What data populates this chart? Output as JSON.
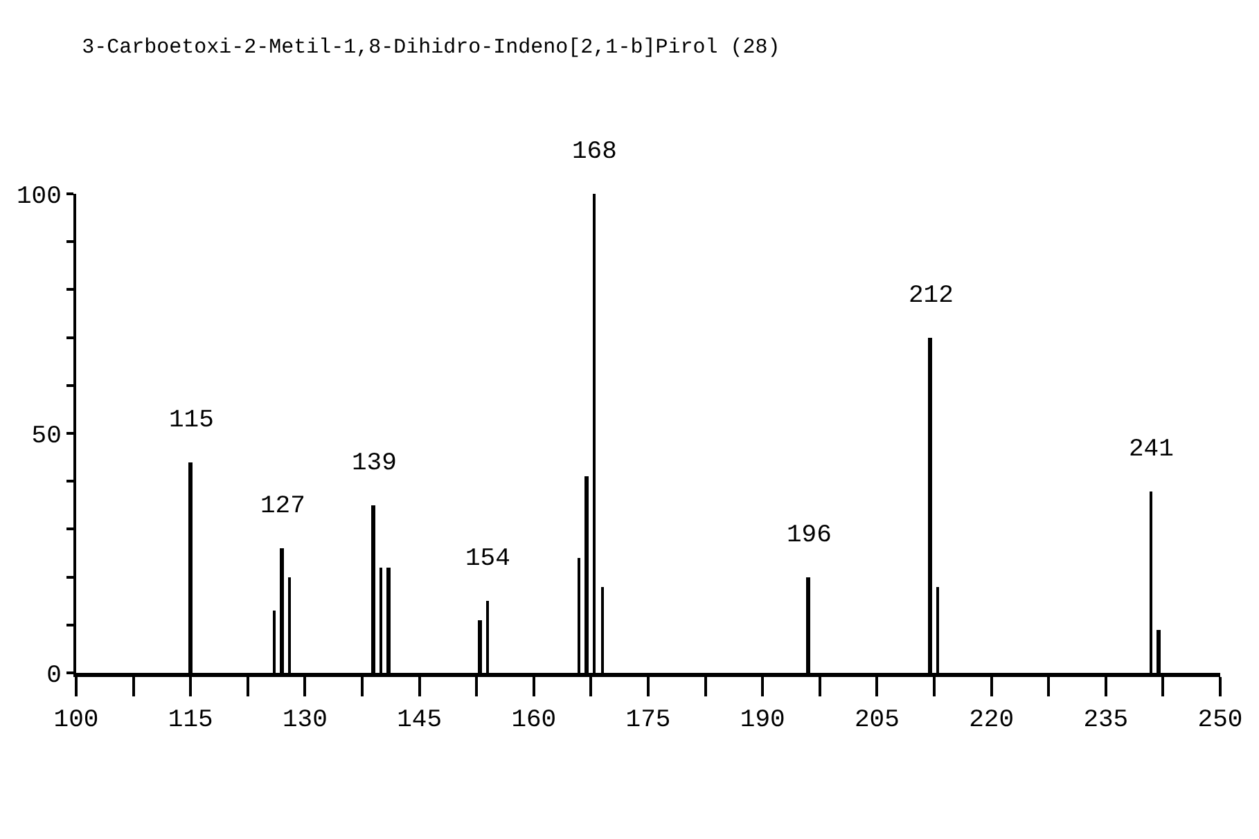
{
  "chart_data": {
    "type": "bar",
    "title": "3-Carboetoxi-2-Metil-1,8-Dihidro-Indeno[2,1-b]Pirol (28)",
    "x": [
      115,
      126,
      127,
      128,
      139,
      140,
      141,
      153,
      154,
      166,
      167,
      168,
      169,
      196,
      212,
      213,
      241,
      242
    ],
    "values": [
      44,
      13,
      26,
      20,
      35,
      22,
      22,
      11,
      15,
      24,
      41,
      100,
      18,
      20,
      70,
      18,
      38,
      9
    ],
    "color": "#000000",
    "xlim": [
      100,
      250
    ],
    "xticks": [
      100,
      {
        "value": 107.5,
        "label": null
      },
      115,
      {
        "value": 122.5,
        "label": null
      },
      130,
      {
        "value": 137.5,
        "label": null
      },
      145,
      {
        "value": 152.5,
        "label": null
      },
      160,
      {
        "value": 167.5,
        "label": null
      },
      175,
      {
        "value": 182.5,
        "label": null
      },
      190,
      {
        "value": 197.5,
        "label": null
      },
      205,
      {
        "value": 212.5,
        "label": null
      },
      220,
      {
        "value": 227.5,
        "label": null
      },
      235,
      {
        "value": 242.5,
        "label": null
      },
      250
    ],
    "ylim": [
      0,
      100
    ],
    "yticks": [
      0,
      {
        "value": 10,
        "label": null
      },
      {
        "value": 20,
        "label": null
      },
      {
        "value": 30,
        "label": null
      },
      {
        "value": 40,
        "label": null
      },
      50,
      {
        "value": 60,
        "label": null
      },
      {
        "value": 70,
        "label": null
      },
      {
        "value": 80,
        "label": null
      },
      {
        "value": 90,
        "label": null
      },
      100
    ],
    "grid": false,
    "annotations": [
      {
        "text": "115",
        "x": 115,
        "y": 44
      },
      {
        "text": "127",
        "x": 127,
        "y": 26
      },
      {
        "text": "139",
        "x": 139,
        "y": 35
      },
      {
        "text": "154",
        "x": 154,
        "y": 15
      },
      {
        "text": "168",
        "x": 168,
        "y": 100
      },
      {
        "text": "196",
        "x": 196,
        "y": 20
      },
      {
        "text": "212",
        "x": 212,
        "y": 70
      },
      {
        "text": "241",
        "x": 241,
        "y": 38
      }
    ]
  }
}
